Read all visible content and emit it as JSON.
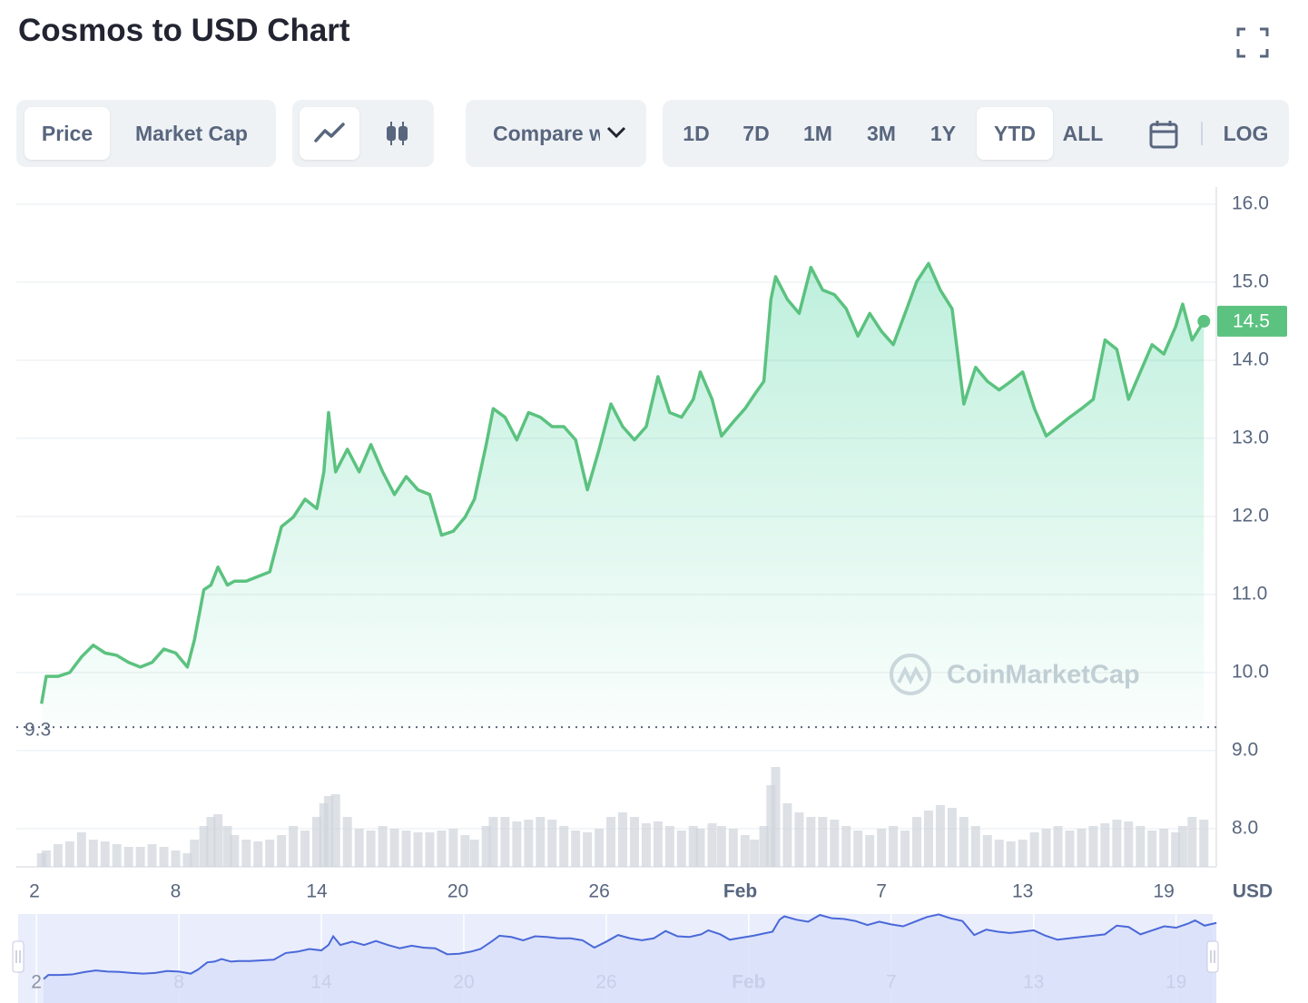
{
  "header": {
    "title": "Cosmos to USD Chart"
  },
  "controls": {
    "view": [
      "Price",
      "Market Cap"
    ],
    "compare": "Compare with",
    "ranges": [
      "1D",
      "7D",
      "1M",
      "3M",
      "1Y",
      "YTD",
      "ALL"
    ],
    "log": "LOG"
  },
  "chart_data": {
    "type": "line",
    "color": "#5bc27f",
    "x": [
      2.3,
      2.5,
      3,
      3.5,
      4,
      4.5,
      5,
      5.5,
      6,
      6.5,
      7,
      7.5,
      8,
      8.5,
      8.8,
      9.2,
      9.5,
      9.8,
      10.2,
      10.5,
      11,
      11.5,
      12,
      12.5,
      13,
      13.5,
      14,
      14.3,
      14.5,
      14.8,
      15.3,
      15.8,
      16.3,
      16.8,
      17.3,
      17.8,
      18.3,
      18.8,
      19.3,
      19.8,
      20.3,
      20.7,
      21.2,
      21.5,
      22,
      22.5,
      23,
      23.5,
      24,
      24.5,
      25,
      25.5,
      26,
      26.5,
      27,
      27.5,
      28,
      28.5,
      29,
      29.5,
      30,
      30.3,
      30.8,
      31.2,
      31.7,
      32.2,
      32.6,
      33,
      33.3,
      33.5,
      34,
      34.5,
      35,
      35.5,
      36,
      36.5,
      37,
      37.5,
      38,
      38.5,
      39,
      39.5,
      40,
      40.5,
      41,
      41.5,
      42,
      42.5,
      43,
      43.5,
      44,
      44.5,
      45,
      45.5,
      46,
      46.5,
      47,
      47.5,
      48,
      48.5,
      49,
      49.5,
      50,
      50.5,
      50.8,
      51.2,
      51.7
    ],
    "values": [
      9.6,
      9.95,
      9.95,
      10.0,
      10.2,
      10.35,
      10.25,
      10.22,
      10.13,
      10.07,
      10.13,
      10.3,
      10.25,
      10.07,
      10.42,
      11.06,
      11.12,
      11.35,
      11.12,
      11.17,
      11.17,
      11.23,
      11.29,
      11.87,
      11.99,
      12.22,
      12.1,
      12.57,
      13.33,
      12.57,
      12.86,
      12.57,
      12.92,
      12.57,
      12.28,
      12.51,
      12.34,
      12.28,
      11.76,
      11.81,
      11.99,
      12.22,
      12.92,
      13.38,
      13.27,
      12.98,
      13.33,
      13.27,
      13.15,
      13.15,
      12.98,
      12.34,
      12.86,
      13.44,
      13.15,
      12.98,
      13.15,
      13.79,
      13.33,
      13.27,
      13.5,
      13.85,
      13.5,
      13.03,
      13.21,
      13.38,
      13.56,
      13.73,
      14.78,
      15.07,
      14.78,
      14.6,
      15.19,
      14.9,
      14.84,
      14.66,
      14.31,
      14.6,
      14.37,
      14.2,
      14.6,
      15.01,
      15.24,
      14.9,
      14.66,
      13.44,
      13.91,
      13.73,
      13.62,
      13.73,
      13.85,
      13.38,
      13.03,
      13.15,
      13.27,
      13.38,
      13.5,
      14.26,
      14.14,
      13.5,
      13.85,
      14.2,
      14.08,
      14.43,
      14.72,
      14.26,
      14.5
    ],
    "volume": {
      "color": "#cfd4dc",
      "values": [
        15,
        18,
        25,
        28,
        38,
        30,
        28,
        25,
        22,
        22,
        25,
        22,
        18,
        15,
        30,
        45,
        55,
        58,
        45,
        35,
        30,
        28,
        30,
        35,
        45,
        40,
        55,
        70,
        78,
        80,
        55,
        42,
        40,
        45,
        42,
        40,
        38,
        38,
        40,
        42,
        35,
        30,
        45,
        55,
        55,
        50,
        52,
        55,
        52,
        45,
        40,
        38,
        42,
        55,
        60,
        55,
        48,
        50,
        45,
        40,
        45,
        42,
        48,
        45,
        42,
        35,
        30,
        45,
        90,
        110,
        70,
        60,
        55,
        55,
        52,
        45,
        40,
        35,
        42,
        45,
        40,
        55,
        62,
        68,
        65,
        55,
        45,
        35,
        30,
        28,
        30,
        38,
        42,
        45,
        40,
        42,
        45,
        48,
        52,
        50,
        45,
        40,
        42,
        38,
        45,
        55,
        52
      ]
    },
    "last_value": 14.5,
    "low_value": 9.3,
    "xlim": [
      1.23,
      52.23
    ],
    "xticks": [
      2,
      8,
      14,
      20,
      26,
      {
        "value": 32,
        "label": "Feb"
      },
      {
        "value": 38,
        "label": "7"
      },
      {
        "value": 44,
        "label": "13"
      },
      {
        "value": 50,
        "label": "19"
      }
    ],
    "ylim": [
      7.51,
      16.22
    ],
    "yticks": [
      {
        "value": 8,
        "label": "8.0"
      },
      {
        "value": 9,
        "label": "9.0"
      },
      {
        "value": 10,
        "label": "10.0"
      },
      {
        "value": 11,
        "label": "11.0"
      },
      {
        "value": 12,
        "label": "12.0"
      },
      {
        "value": 13,
        "label": "13.0"
      },
      {
        "value": 14,
        "label": "14.0"
      },
      {
        "value": 15,
        "label": "15.0"
      },
      {
        "value": 16,
        "label": "16.0"
      }
    ],
    "unit": "USD",
    "grid": true,
    "watermark": "CoinMarketCap",
    "navigator": {
      "color": "#4a68d8",
      "fill": "#d7def9"
    }
  }
}
